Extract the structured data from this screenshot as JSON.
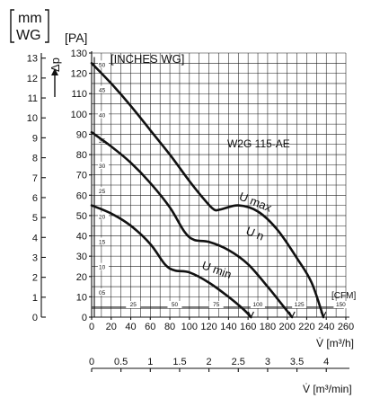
{
  "chart_data": {
    "type": "line",
    "title": "",
    "model_label": "W2G 115-AE",
    "units": {
      "mmwg_line1": "mm",
      "mmwg_line2": "WG",
      "pa": "[PA]",
      "delta_p": "Δp",
      "inches_wg": "[INCHES WG]",
      "cfm": "[CFM]",
      "x_m3h": "V̇ [m³/h]",
      "x_m3min": "V̇ [m³/min]"
    },
    "xlim": [
      0,
      260
    ],
    "ylim": [
      0,
      130
    ],
    "x_ticks": [
      0,
      20,
      40,
      60,
      80,
      100,
      120,
      140,
      160,
      180,
      200,
      220,
      240,
      260
    ],
    "y_ticks": [
      0,
      10,
      20,
      30,
      40,
      50,
      60,
      70,
      80,
      90,
      100,
      110,
      120,
      130
    ],
    "mmwg_ticks": [
      0,
      1,
      2,
      3,
      4,
      5,
      6,
      7,
      8,
      9,
      10,
      11,
      12,
      13
    ],
    "inches_ticks": [
      "05",
      "10",
      "15",
      "20",
      "25",
      "30",
      "35",
      "40",
      "45",
      "50"
    ],
    "cfm_ticks": [
      "25",
      "50",
      "75",
      "100",
      "125",
      "150"
    ],
    "m3min_ticks": [
      "0",
      "0.5",
      "1",
      "1.5",
      "2",
      "2.5",
      "3",
      "3.5",
      "4"
    ],
    "series": [
      {
        "name": "U max",
        "x": [
          0,
          20,
          40,
          60,
          80,
          100,
          115,
          125,
          132,
          150,
          170,
          190,
          210,
          225,
          237
        ],
        "y": [
          125,
          115,
          104,
          92,
          80,
          67,
          58,
          53,
          53,
          55,
          52,
          43,
          29,
          17,
          0
        ]
      },
      {
        "name": "U n",
        "x": [
          0,
          20,
          40,
          60,
          80,
          95,
          105,
          120,
          140,
          160,
          180,
          195,
          205
        ],
        "y": [
          91,
          84,
          76,
          66,
          54,
          42,
          38,
          37,
          33,
          26,
          15,
          6,
          0
        ]
      },
      {
        "name": "U min",
        "x": [
          0,
          20,
          40,
          60,
          75,
          85,
          100,
          120,
          140,
          155,
          163
        ],
        "y": [
          55,
          51,
          45,
          36,
          26,
          23,
          22,
          17,
          10,
          4,
          0
        ]
      }
    ]
  }
}
